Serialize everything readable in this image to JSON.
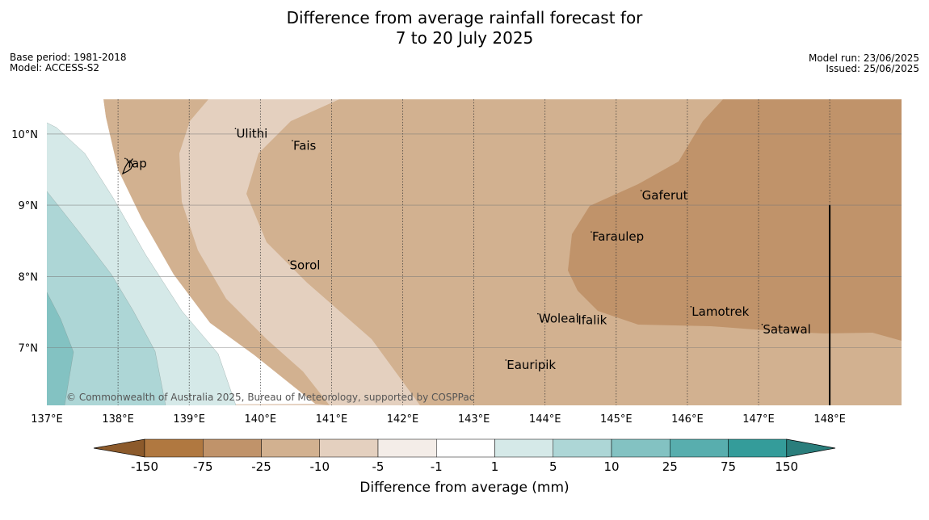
{
  "header": {
    "title_line1": "Difference from average rainfall forecast for",
    "title_line2": "7 to 20 July 2025",
    "base_period": "Base period: 1981-2018",
    "model": "Model: ACCESS-S2",
    "model_run": "Model run: 23/06/2025",
    "issued": "Issued: 25/06/2025"
  },
  "map": {
    "lon_range": [
      137.0,
      149.0
    ],
    "lat_range": [
      6.2,
      10.5
    ],
    "lon_ticks": [
      {
        "value": 137,
        "label": "137°E"
      },
      {
        "value": 138,
        "label": "138°E"
      },
      {
        "value": 139,
        "label": "139°E"
      },
      {
        "value": 140,
        "label": "140°E"
      },
      {
        "value": 141,
        "label": "141°E"
      },
      {
        "value": 142,
        "label": "142°E"
      },
      {
        "value": 143,
        "label": "143°E"
      },
      {
        "value": 144,
        "label": "144°E"
      },
      {
        "value": 145,
        "label": "145°E"
      },
      {
        "value": 146,
        "label": "146°E"
      },
      {
        "value": 147,
        "label": "147°E"
      },
      {
        "value": 148,
        "label": "148°E"
      }
    ],
    "lat_ticks": [
      {
        "value": 10,
        "label": "10°N"
      },
      {
        "value": 9,
        "label": "9°N"
      },
      {
        "value": 8,
        "label": "8°N"
      },
      {
        "value": 7,
        "label": "7°N"
      }
    ],
    "places": [
      {
        "name": "Ulithi",
        "lon": 139.65,
        "lat": 9.95
      },
      {
        "name": "Fais",
        "lon": 140.45,
        "lat": 9.78
      },
      {
        "name": "Yap",
        "lon": 138.1,
        "lat": 9.53
      },
      {
        "name": "Gaferut",
        "lon": 145.35,
        "lat": 9.08
      },
      {
        "name": "Faraulep",
        "lon": 144.65,
        "lat": 8.5
      },
      {
        "name": "Sorol",
        "lon": 140.4,
        "lat": 8.1
      },
      {
        "name": "Woleai",
        "lon": 143.9,
        "lat": 7.35
      },
      {
        "name": "Ifalik",
        "lon": 144.45,
        "lat": 7.33
      },
      {
        "name": "Lamotrek",
        "lon": 146.05,
        "lat": 7.45
      },
      {
        "name": "Satawal",
        "lon": 147.05,
        "lat": 7.2
      },
      {
        "name": "Eauripik",
        "lon": 143.45,
        "lat": 6.7
      }
    ],
    "copyright": "© Commonwealth of Australia 2025, Bureau of Meteorology, supported by COSPPac"
  },
  "colorbar": {
    "label": "Difference from average (mm)",
    "ticks": [
      "-150",
      "-75",
      "-25",
      "-10",
      "-5",
      "-1",
      "1",
      "5",
      "10",
      "25",
      "75",
      "150"
    ],
    "colors": [
      "#8c5a2b",
      "#b07840",
      "#c0936a",
      "#d2b190",
      "#e4d0bf",
      "#f4ede8",
      "#ffffff",
      "#d5e9e8",
      "#add6d6",
      "#83c2c2",
      "#58aeae",
      "#349c9a",
      "#2a7e7c"
    ]
  }
}
